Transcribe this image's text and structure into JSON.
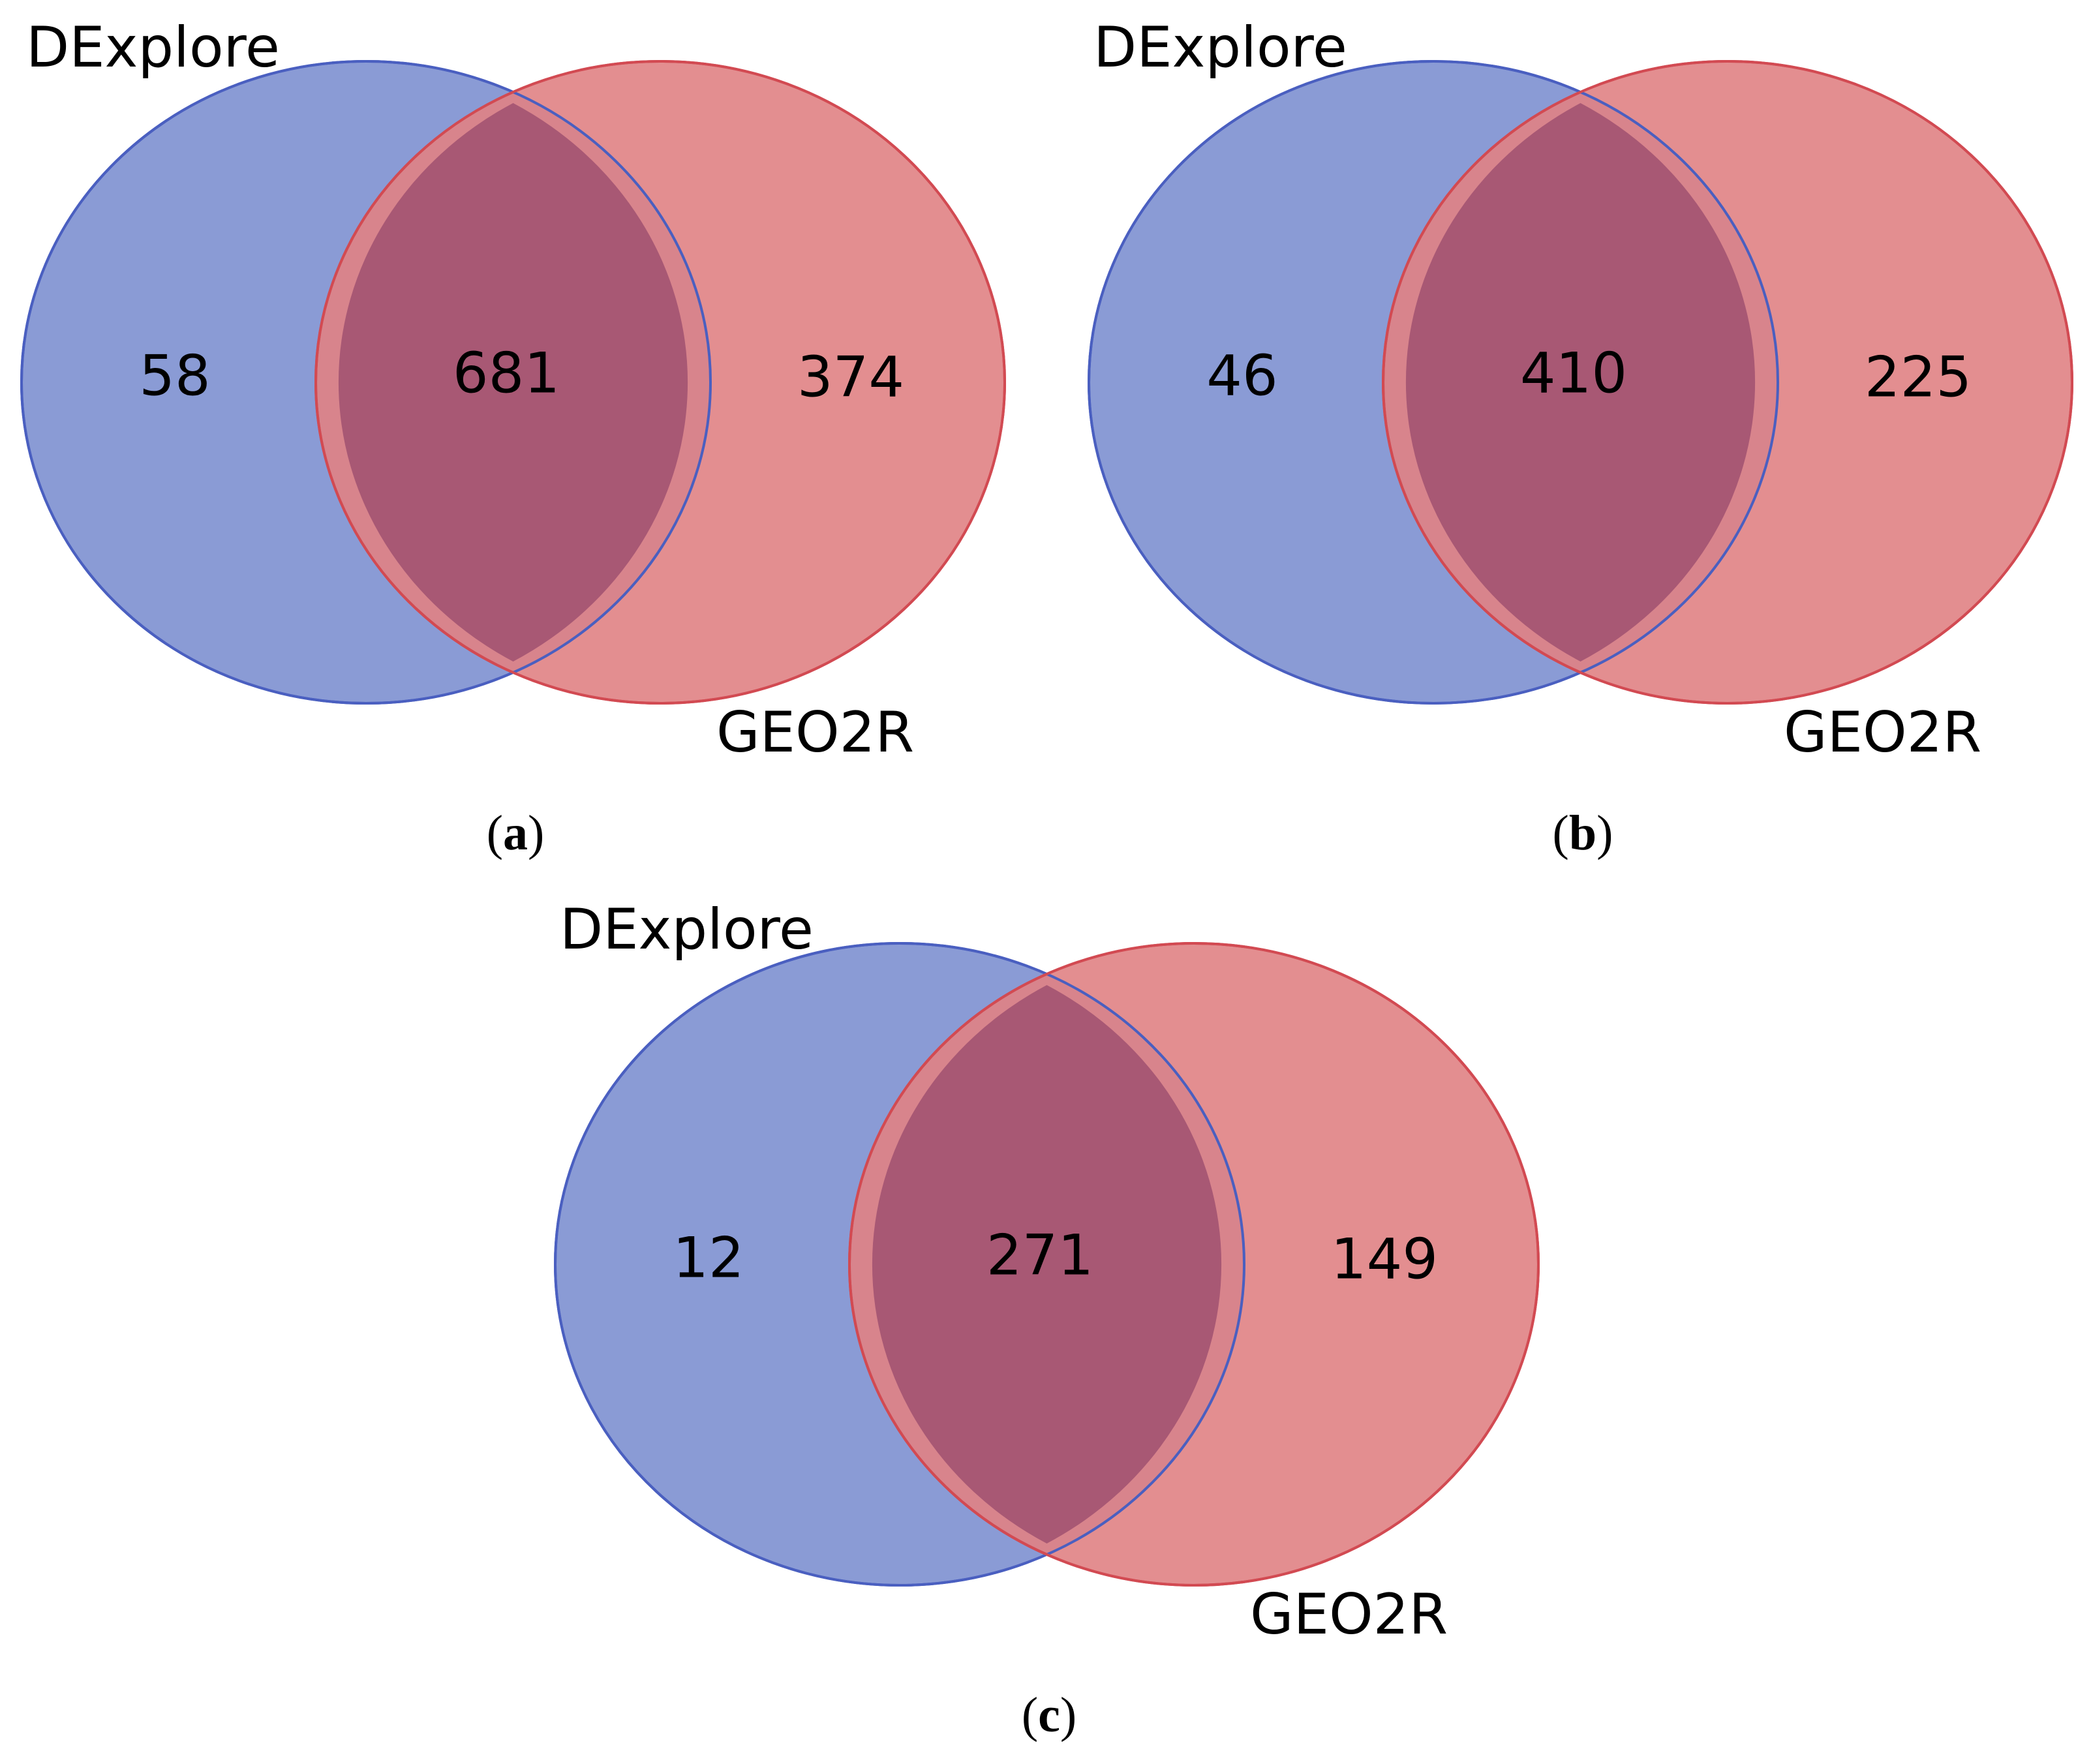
{
  "colors": {
    "set_a_fill": "#8a9bd5",
    "set_a_stroke": "#4a5fc0",
    "set_b_fill": "#e08284",
    "set_b_stroke": "#d24a52",
    "overlap_fill": "#a85874"
  },
  "panels": [
    {
      "caption_letter": "a",
      "set_a_label": "DExplore",
      "set_b_label": "GEO2R",
      "only_a": "58",
      "both": "681",
      "only_b": "374"
    },
    {
      "caption_letter": "b",
      "set_a_label": "DExplore",
      "set_b_label": "GEO2R",
      "only_a": "46",
      "both": "410",
      "only_b": "225"
    },
    {
      "caption_letter": "c",
      "set_a_label": "DExplore",
      "set_b_label": "GEO2R",
      "only_a": "12",
      "both": "271",
      "only_b": "149"
    }
  ]
}
